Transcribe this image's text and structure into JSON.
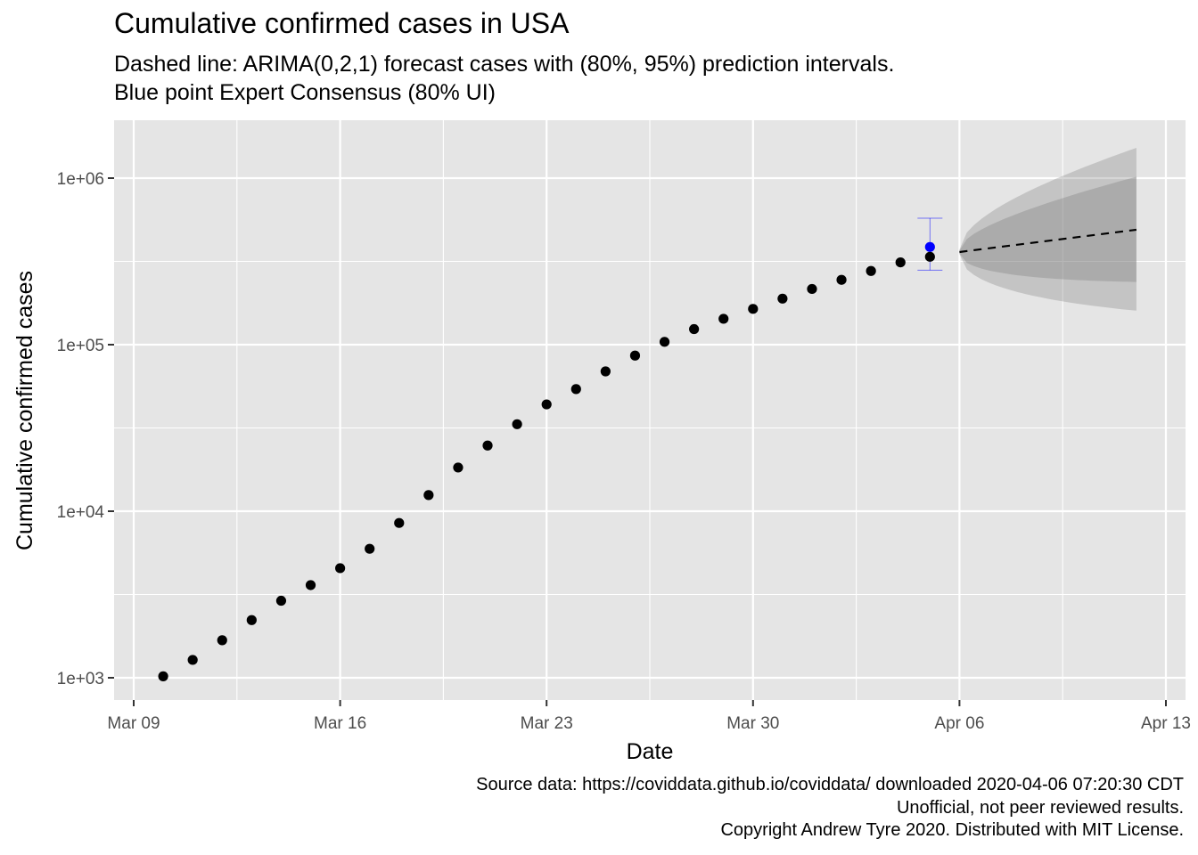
{
  "chart_data": {
    "type": "scatter",
    "title": "Cumulative confirmed cases in USA",
    "subtitle": [
      "Dashed line: ARIMA(0,2,1) forecast cases with (80%, 95%) prediction intervals.",
      "Blue point Expert Consensus (80% UI)"
    ],
    "xlabel": "Date",
    "ylabel": "Cumulative confirmed cases",
    "caption": [
      "Source data: https://coviddata.github.io/coviddata/ downloaded  2020-04-06 07:20:30 CDT",
      "Unofficial, not peer reviewed results.",
      "Copyright Andrew Tyre 2020. Distributed with MIT License."
    ],
    "y_scale": "log10",
    "xlim": [
      "2020-03-09",
      "2020-04-13"
    ],
    "ylim": [
      700,
      2000000
    ],
    "x_ticks": [
      {
        "date": "2020-03-09",
        "label": "Mar 09"
      },
      {
        "date": "2020-03-16",
        "label": "Mar 16"
      },
      {
        "date": "2020-03-23",
        "label": "Mar 23"
      },
      {
        "date": "2020-03-30",
        "label": "Mar 30"
      },
      {
        "date": "2020-04-06",
        "label": "Apr 06"
      },
      {
        "date": "2020-04-13",
        "label": "Apr 13"
      }
    ],
    "y_ticks": [
      {
        "value": 1000,
        "label": "1e+03"
      },
      {
        "value": 10000,
        "label": "1e+04"
      },
      {
        "value": 100000,
        "label": "1e+05"
      },
      {
        "value": 1000000,
        "label": "1e+06"
      }
    ],
    "grid": true,
    "observed": {
      "color": "#000000",
      "points": [
        {
          "x": "2020-03-10",
          "y": 1020
        },
        {
          "x": "2020-03-11",
          "y": 1280
        },
        {
          "x": "2020-03-12",
          "y": 1680
        },
        {
          "x": "2020-03-13",
          "y": 2220
        },
        {
          "x": "2020-03-14",
          "y": 2900
        },
        {
          "x": "2020-03-15",
          "y": 3600
        },
        {
          "x": "2020-03-16",
          "y": 4550
        },
        {
          "x": "2020-03-17",
          "y": 5950
        },
        {
          "x": "2020-03-18",
          "y": 8500
        },
        {
          "x": "2020-03-19",
          "y": 12500
        },
        {
          "x": "2020-03-20",
          "y": 18300
        },
        {
          "x": "2020-03-21",
          "y": 24800
        },
        {
          "x": "2020-03-22",
          "y": 33300
        },
        {
          "x": "2020-03-23",
          "y": 43800
        },
        {
          "x": "2020-03-24",
          "y": 54100
        },
        {
          "x": "2020-03-25",
          "y": 69100
        },
        {
          "x": "2020-03-26",
          "y": 86000
        },
        {
          "x": "2020-03-27",
          "y": 104000
        },
        {
          "x": "2020-03-28",
          "y": 124000
        },
        {
          "x": "2020-03-29",
          "y": 143000
        },
        {
          "x": "2020-03-30",
          "y": 164000
        },
        {
          "x": "2020-03-31",
          "y": 189000
        },
        {
          "x": "2020-04-01",
          "y": 216000
        },
        {
          "x": "2020-04-02",
          "y": 245000
        },
        {
          "x": "2020-04-03",
          "y": 277000
        },
        {
          "x": "2020-04-04",
          "y": 312000
        },
        {
          "x": "2020-04-05",
          "y": 337000
        }
      ]
    },
    "forecast": {
      "line_style": "dashed",
      "color": "#000000",
      "band_color": "#808080",
      "points": [
        {
          "x": "2020-04-06",
          "y": 360000,
          "lo80": 353000,
          "hi80": 368000,
          "lo95": 349000,
          "hi95": 372000
        },
        {
          "x": "2020-04-12",
          "y": 490000,
          "lo80": 238000,
          "hi80": 1020000,
          "lo95": 160000,
          "hi95": 1520000
        }
      ]
    },
    "expert_consensus": {
      "color": "#0000ff",
      "x": "2020-04-05",
      "y": 386000,
      "lo": 280000,
      "hi": 575000
    }
  }
}
